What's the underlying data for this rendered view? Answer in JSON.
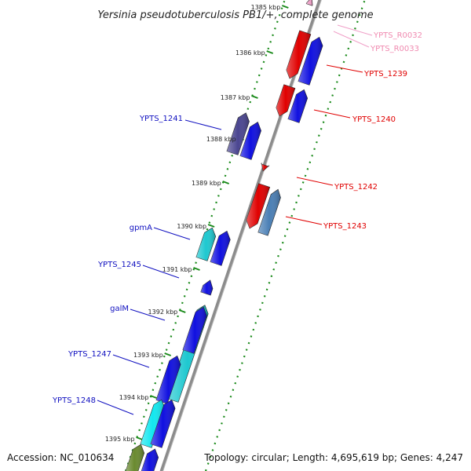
{
  "title": "Yersinia pseudotuberculosis PB1/+, complete genome",
  "footer": {
    "accession": "Accession: NC_010634",
    "summary": "Topology: circular; Length: 4,695,619 bp; Genes: 4,247"
  },
  "colors": {
    "backbone": "#8c8c8c",
    "tick": "#1a8a1a",
    "plus_cds": "#e00000",
    "minus_cds": "#1010e0",
    "dark_purple": "#4a4590",
    "steel_blue": "#4a7fb5",
    "cyan": "#1ec8d0",
    "olive": "#6a8a30",
    "rna": "#f0a0c8",
    "label_red": "#e00000",
    "label_blue": "#1010c0",
    "label_pink": "#f08ab0"
  },
  "kbp_ticks": [
    "1385 kbp",
    "1386 kbp",
    "1387 kbp",
    "1388 kbp",
    "1389 kbp",
    "1390 kbp",
    "1391 kbp",
    "1392 kbp",
    "1393 kbp",
    "1394 kbp",
    "1395 kbp"
  ],
  "right_labels": [
    {
      "text": "YPTS_R0032",
      "color": "rna"
    },
    {
      "text": "YPTS_R0033",
      "color": "rna"
    },
    {
      "text": "YPTS_1239",
      "color": "plus_cds"
    },
    {
      "text": "YPTS_1240",
      "color": "plus_cds"
    },
    {
      "text": "YPTS_1242",
      "color": "plus_cds"
    },
    {
      "text": "YPTS_1243",
      "color": "plus_cds"
    }
  ],
  "left_labels": [
    {
      "text": "YPTS_1241"
    },
    {
      "text": "gpmA"
    },
    {
      "text": "YPTS_1245"
    },
    {
      "text": "galM"
    },
    {
      "text": "YPTS_1247"
    },
    {
      "text": "YPTS_1248"
    }
  ]
}
